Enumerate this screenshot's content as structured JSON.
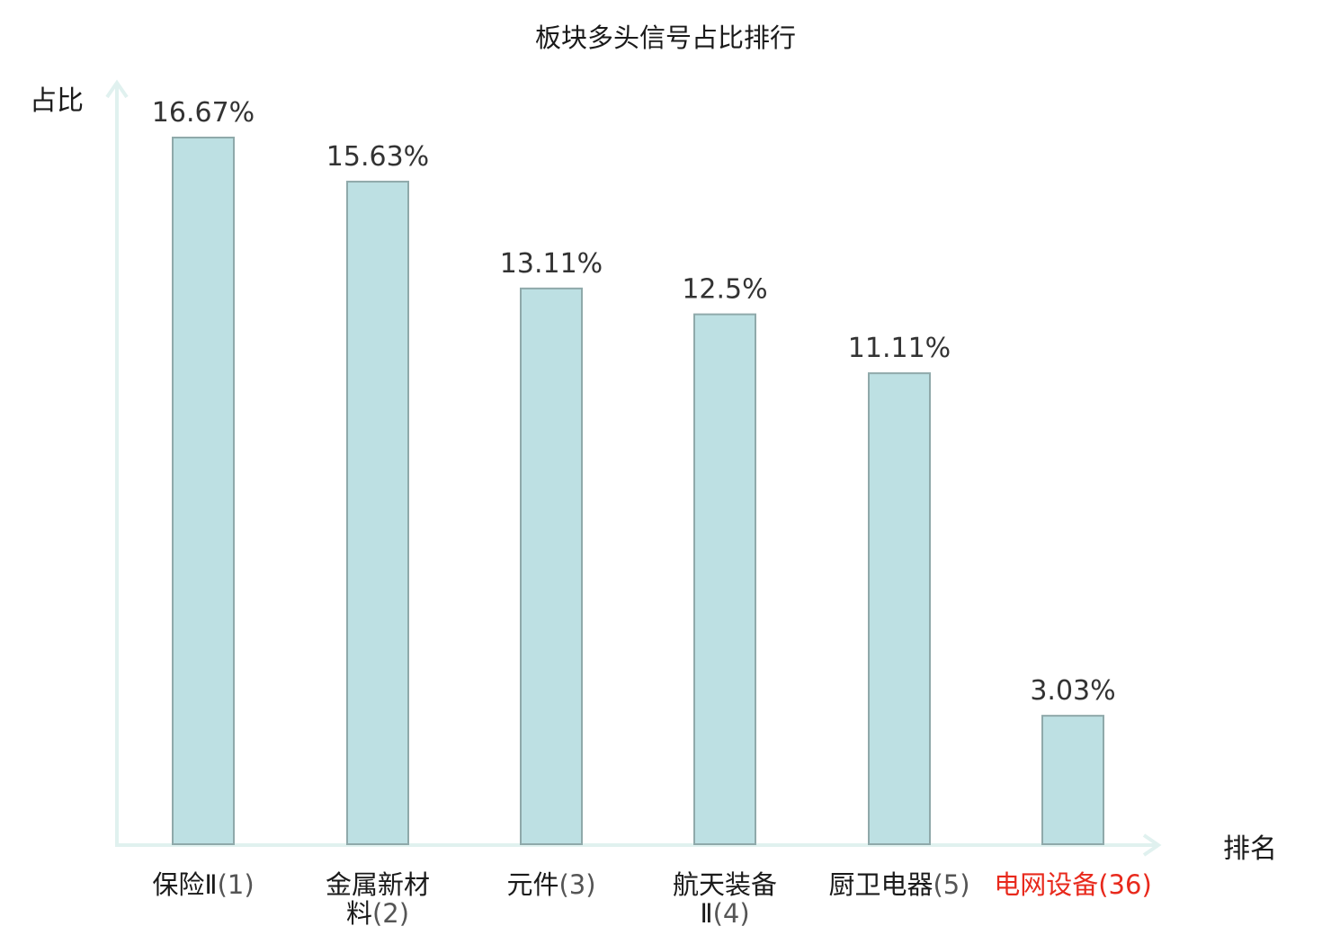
{
  "chart_data": {
    "type": "bar",
    "title": "板块多头信号占比排行",
    "ylabel": "占比",
    "xlabel": "排名",
    "unit": "%",
    "ylim": [
      0,
      17.5
    ],
    "grid": false,
    "legend": "none",
    "categories": [
      {
        "name": "保险Ⅱ",
        "rank": "(1)",
        "highlight": false
      },
      {
        "name": "金属新材料",
        "rank": "(2)",
        "highlight": false
      },
      {
        "name": "元件",
        "rank": "(3)",
        "highlight": false
      },
      {
        "name": "航天装备Ⅱ",
        "rank": "(4)",
        "highlight": false
      },
      {
        "name": "厨卫电器",
        "rank": "(5)",
        "highlight": false
      },
      {
        "name": "电网设备",
        "rank": "(36)",
        "highlight": true
      }
    ],
    "values": [
      16.67,
      15.63,
      13.11,
      12.5,
      11.11,
      3.03
    ],
    "value_labels": [
      "16.67%",
      "15.63%",
      "13.11%",
      "12.5%",
      "11.11%",
      "3.03%"
    ],
    "colors": {
      "bar_fill": "#bde0e3",
      "bar_stroke": "#8fa9aa",
      "axis": "#e0f1ef",
      "highlight_text": "#e8291c"
    }
  }
}
